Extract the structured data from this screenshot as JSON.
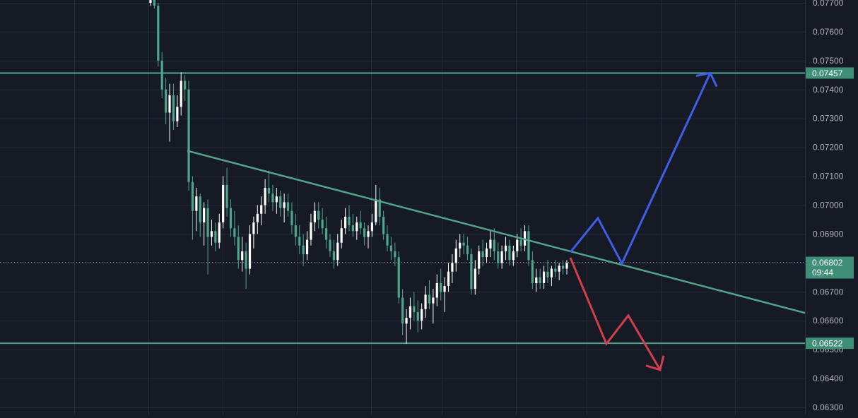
{
  "chart_data": {
    "type": "candlestick",
    "ylim": [
      0.06285,
      0.07725
    ],
    "y_ticks": [
      "0.06300",
      "0.06400",
      "0.06500",
      "0.06600",
      "0.06700",
      "0.06800",
      "0.06900",
      "0.07000",
      "0.07100",
      "0.07200",
      "0.07300",
      "0.07400",
      "0.07500",
      "0.07600",
      "0.07700"
    ],
    "grid": true,
    "colors": {
      "background": "#161a25",
      "grid": "#262b38",
      "axis_text": "#b2b5be",
      "up_candle": "#ffffff",
      "down_candle": "#4ea58e",
      "level_line": "#4ea58e",
      "trendline": "#52a58a",
      "bull_path": "#3f5ee8",
      "bear_path": "#d23f4c",
      "last_price_line": "#8a8f9c",
      "label_bg": "#3f8f78",
      "label_text": "#ffffff"
    },
    "candles": [
      [
        0.077,
        0.0773,
        0.0769,
        0.0771
      ],
      [
        0.0771,
        0.0772,
        0.0768,
        0.0769
      ],
      [
        0.0769,
        0.077,
        0.0748,
        0.075
      ],
      [
        0.075,
        0.0753,
        0.0737,
        0.074
      ],
      [
        0.074,
        0.0744,
        0.0728,
        0.0732
      ],
      [
        0.0732,
        0.0742,
        0.0722,
        0.0738
      ],
      [
        0.0738,
        0.0742,
        0.0726,
        0.0729
      ],
      [
        0.0729,
        0.0738,
        0.0727,
        0.0734
      ],
      [
        0.0734,
        0.0746,
        0.0731,
        0.0743
      ],
      [
        0.0743,
        0.0745,
        0.0736,
        0.074
      ],
      [
        0.074,
        0.0743,
        0.0705,
        0.0708
      ],
      [
        0.0708,
        0.071,
        0.0688,
        0.0698
      ],
      [
        0.0698,
        0.0706,
        0.0691,
        0.0703
      ],
      [
        0.0703,
        0.0704,
        0.0689,
        0.0694
      ],
      [
        0.0694,
        0.0701,
        0.0686,
        0.0699
      ],
      [
        0.0699,
        0.0702,
        0.0676,
        0.0689
      ],
      [
        0.0689,
        0.0695,
        0.0686,
        0.0691
      ],
      [
        0.0691,
        0.0694,
        0.0684,
        0.0687
      ],
      [
        0.0687,
        0.0697,
        0.0685,
        0.0694
      ],
      [
        0.0694,
        0.071,
        0.0692,
        0.0707
      ],
      [
        0.0707,
        0.0713,
        0.0696,
        0.0699
      ],
      [
        0.0699,
        0.0702,
        0.0689,
        0.0692
      ],
      [
        0.0692,
        0.0698,
        0.0686,
        0.0689
      ],
      [
        0.0689,
        0.0693,
        0.0678,
        0.0681
      ],
      [
        0.0681,
        0.0689,
        0.0677,
        0.0684
      ],
      [
        0.0684,
        0.0687,
        0.0671,
        0.0678
      ],
      [
        0.0678,
        0.0693,
        0.0676,
        0.069
      ],
      [
        0.069,
        0.0696,
        0.0685,
        0.0694
      ],
      [
        0.0694,
        0.07,
        0.069,
        0.0697
      ],
      [
        0.0697,
        0.0703,
        0.0693,
        0.07
      ],
      [
        0.07,
        0.0709,
        0.0697,
        0.0706
      ],
      [
        0.0706,
        0.0712,
        0.0701,
        0.0704
      ],
      [
        0.0704,
        0.0707,
        0.0698,
        0.0701
      ],
      [
        0.0701,
        0.0706,
        0.0697,
        0.0703
      ],
      [
        0.0703,
        0.0705,
        0.0696,
        0.0699
      ],
      [
        0.0699,
        0.0704,
        0.0694,
        0.0701
      ],
      [
        0.0701,
        0.0704,
        0.0696,
        0.0698
      ],
      [
        0.0698,
        0.0701,
        0.069,
        0.0693
      ],
      [
        0.0693,
        0.0697,
        0.0686,
        0.0689
      ],
      [
        0.0689,
        0.0693,
        0.0683,
        0.0686
      ],
      [
        0.0686,
        0.069,
        0.0679,
        0.0683
      ],
      [
        0.0683,
        0.0691,
        0.0681,
        0.0688
      ],
      [
        0.0688,
        0.0697,
        0.0686,
        0.0694
      ],
      [
        0.0694,
        0.0701,
        0.0691,
        0.0698
      ],
      [
        0.0698,
        0.0701,
        0.0692,
        0.0695
      ],
      [
        0.0695,
        0.0699,
        0.069,
        0.0692
      ],
      [
        0.0692,
        0.0696,
        0.0685,
        0.0688
      ],
      [
        0.0688,
        0.069,
        0.0682,
        0.0684
      ],
      [
        0.0684,
        0.0688,
        0.0678,
        0.0681
      ],
      [
        0.0681,
        0.069,
        0.0679,
        0.0687
      ],
      [
        0.0687,
        0.0695,
        0.0685,
        0.0692
      ],
      [
        0.0692,
        0.0699,
        0.069,
        0.0696
      ],
      [
        0.0696,
        0.07,
        0.0691,
        0.0693
      ],
      [
        0.0693,
        0.0697,
        0.0689,
        0.0691
      ],
      [
        0.0691,
        0.0696,
        0.0688,
        0.0694
      ],
      [
        0.0694,
        0.0698,
        0.069,
        0.0692
      ],
      [
        0.0692,
        0.0694,
        0.0686,
        0.0689
      ],
      [
        0.0689,
        0.0693,
        0.0685,
        0.0691
      ],
      [
        0.0691,
        0.0697,
        0.0689,
        0.0694
      ],
      [
        0.0694,
        0.0707,
        0.0693,
        0.0702
      ],
      [
        0.0702,
        0.0706,
        0.0693,
        0.0696
      ],
      [
        0.0696,
        0.0698,
        0.0688,
        0.069
      ],
      [
        0.069,
        0.0693,
        0.0684,
        0.0686
      ],
      [
        0.0686,
        0.0689,
        0.0681,
        0.0684
      ],
      [
        0.0684,
        0.0687,
        0.0679,
        0.0682
      ],
      [
        0.0682,
        0.0684,
        0.0666,
        0.0668
      ],
      [
        0.0668,
        0.0671,
        0.0655,
        0.0659
      ],
      [
        0.0659,
        0.0664,
        0.0652,
        0.0661
      ],
      [
        0.0661,
        0.0668,
        0.0657,
        0.0665
      ],
      [
        0.0665,
        0.067,
        0.066,
        0.0663
      ],
      [
        0.0663,
        0.0667,
        0.0656,
        0.066
      ],
      [
        0.066,
        0.0666,
        0.0657,
        0.0664
      ],
      [
        0.0664,
        0.0672,
        0.0661,
        0.0669
      ],
      [
        0.0669,
        0.0674,
        0.0664,
        0.0666
      ],
      [
        0.0666,
        0.0671,
        0.0659,
        0.0668
      ],
      [
        0.0668,
        0.0676,
        0.0665,
        0.0673
      ],
      [
        0.0673,
        0.0678,
        0.0667,
        0.067
      ],
      [
        0.067,
        0.0675,
        0.0663,
        0.0672
      ],
      [
        0.0672,
        0.068,
        0.067,
        0.0677
      ],
      [
        0.0677,
        0.0683,
        0.0673,
        0.068
      ],
      [
        0.068,
        0.0688,
        0.0677,
        0.0685
      ],
      [
        0.0685,
        0.069,
        0.0682,
        0.0687
      ],
      [
        0.0687,
        0.069,
        0.0683,
        0.0686
      ],
      [
        0.0686,
        0.0689,
        0.0681,
        0.0683
      ],
      [
        0.0683,
        0.0685,
        0.0669,
        0.0671
      ],
      [
        0.0671,
        0.0681,
        0.0669,
        0.0678
      ],
      [
        0.0678,
        0.0686,
        0.0676,
        0.0684
      ],
      [
        0.0684,
        0.0688,
        0.0679,
        0.0682
      ],
      [
        0.0682,
        0.0687,
        0.068,
        0.0685
      ],
      [
        0.0685,
        0.0691,
        0.0682,
        0.0688
      ],
      [
        0.0688,
        0.0692,
        0.0681,
        0.0684
      ],
      [
        0.0684,
        0.0687,
        0.0678,
        0.068
      ],
      [
        0.068,
        0.0686,
        0.0678,
        0.0684
      ],
      [
        0.0684,
        0.0689,
        0.0681,
        0.0686
      ],
      [
        0.0686,
        0.0688,
        0.0679,
        0.0681
      ],
      [
        0.0681,
        0.0686,
        0.0679,
        0.0684
      ],
      [
        0.0684,
        0.069,
        0.0682,
        0.0688
      ],
      [
        0.0688,
        0.0692,
        0.0684,
        0.0686
      ],
      [
        0.0686,
        0.0693,
        0.0684,
        0.0691
      ],
      [
        0.0691,
        0.0693,
        0.0679,
        0.0681
      ],
      [
        0.0681,
        0.0684,
        0.0671,
        0.0673
      ],
      [
        0.0673,
        0.0678,
        0.067,
        0.0675
      ],
      [
        0.0675,
        0.0678,
        0.0671,
        0.0673
      ],
      [
        0.0673,
        0.0679,
        0.0671,
        0.0677
      ],
      [
        0.0677,
        0.0681,
        0.0673,
        0.0675
      ],
      [
        0.0675,
        0.0679,
        0.0672,
        0.0678
      ],
      [
        0.0678,
        0.0681,
        0.0675,
        0.0677
      ],
      [
        0.0677,
        0.068,
        0.0674,
        0.0679
      ],
      [
        0.0679,
        0.0681,
        0.0676,
        0.0678
      ],
      [
        0.0678,
        0.0681,
        0.0676,
        0.068
      ]
    ],
    "horizontal_levels": [
      {
        "price": 0.07457,
        "label": "0.07457"
      },
      {
        "price": 0.06522,
        "label": "0.06522"
      }
    ],
    "trendline": [
      [
        0.07188,
        0.06627
      ]
    ],
    "last_price": {
      "price": 0.06802,
      "label": "0.06802",
      "countdown": "09:44"
    },
    "projections": {
      "bullish_path": [
        0.06837,
        0.06955,
        0.06798,
        0.07457
      ],
      "bearish_path": [
        0.06818,
        0.0652,
        0.06618,
        0.0643
      ]
    }
  }
}
